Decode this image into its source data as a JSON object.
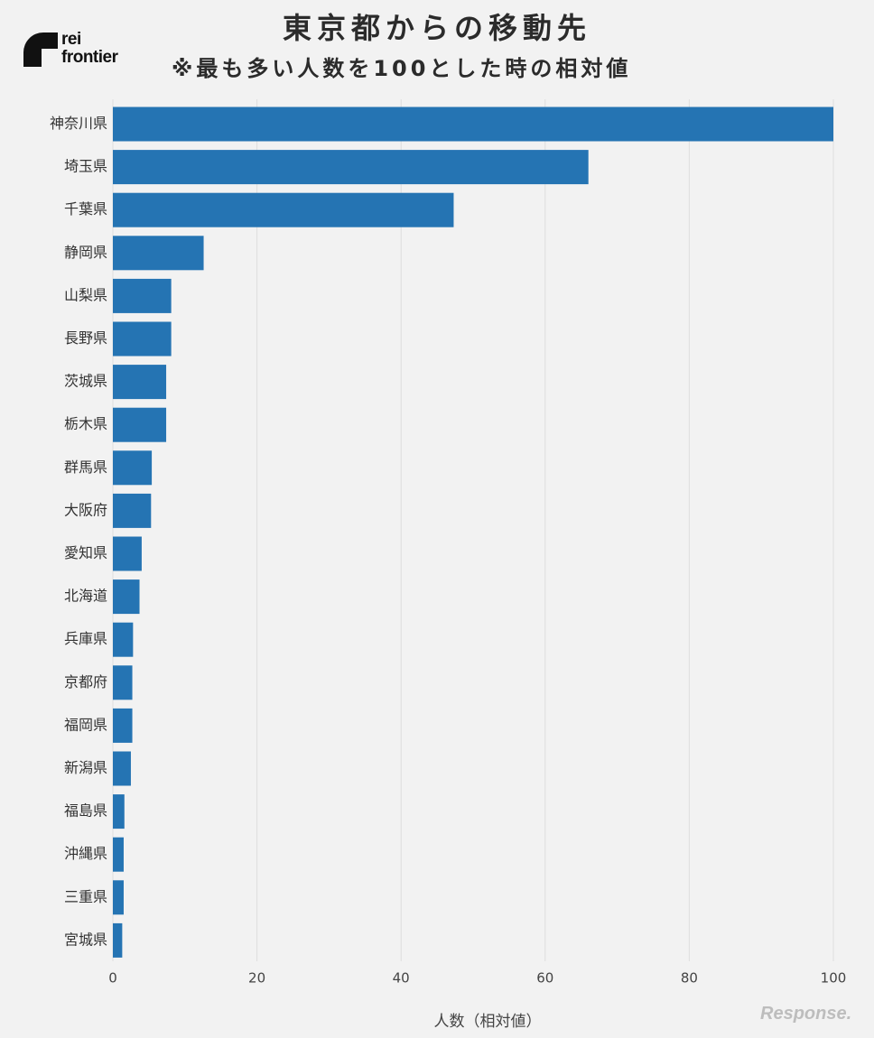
{
  "logo": {
    "text": "rei\nfrontier"
  },
  "watermark": "Response.",
  "chart_data": {
    "type": "bar",
    "orientation": "horizontal",
    "title": "東京都からの移動先",
    "subtitle": "※最も多い人数を100とした時の相対値",
    "xlabel": "人数（相対値）",
    "ylabel": "",
    "xlim": [
      0,
      100
    ],
    "xticks": [
      0,
      20,
      40,
      60,
      80,
      100
    ],
    "grid": true,
    "bar_color": "#2574b3",
    "categories": [
      "神奈川県",
      "埼玉県",
      "千葉県",
      "静岡県",
      "山梨県",
      "長野県",
      "茨城県",
      "栃木県",
      "群馬県",
      "大阪府",
      "愛知県",
      "北海道",
      "兵庫県",
      "京都府",
      "福岡県",
      "新潟県",
      "福島県",
      "沖縄県",
      "三重県",
      "宮城県"
    ],
    "values": [
      100,
      66,
      47.3,
      12.6,
      8.1,
      8.1,
      7.4,
      7.4,
      5.4,
      5.3,
      4.0,
      3.7,
      2.8,
      2.7,
      2.7,
      2.5,
      1.6,
      1.5,
      1.5,
      1.3
    ]
  }
}
